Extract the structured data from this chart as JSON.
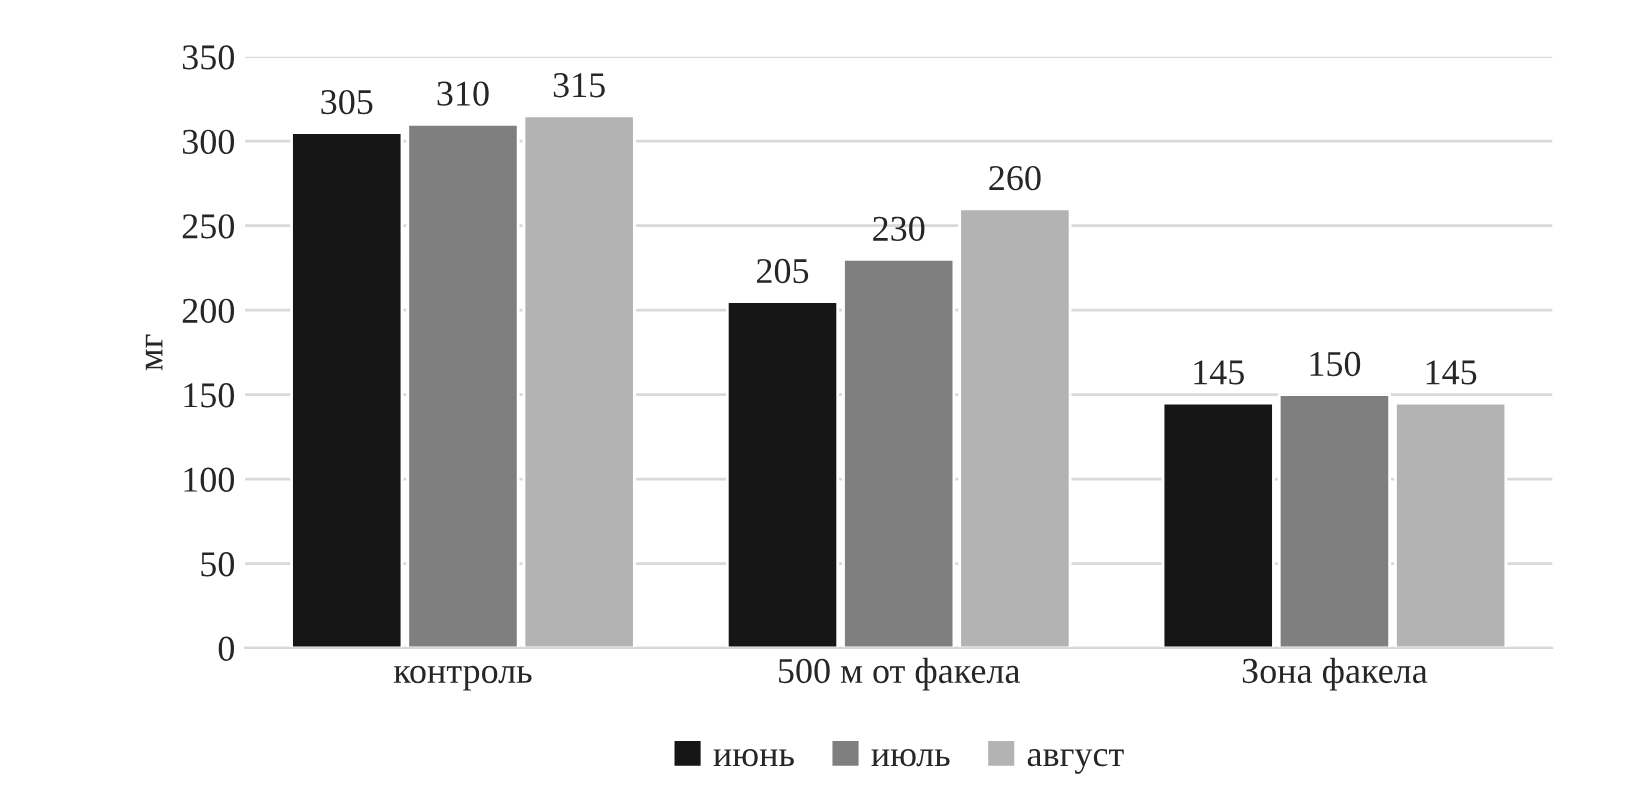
{
  "chart_data": {
    "type": "bar",
    "ylabel": "мг",
    "categories": [
      "контроль",
      "500 м от факела",
      "Зона факела"
    ],
    "series": [
      {
        "name": "июнь",
        "color": "#161616",
        "values": [
          305,
          205,
          145
        ]
      },
      {
        "name": "июль",
        "color": "#7f7f7f",
        "values": [
          310,
          230,
          150
        ]
      },
      {
        "name": "август",
        "color": "#b3b3b3",
        "values": [
          315,
          260,
          145
        ]
      }
    ],
    "ylim": [
      0,
      350
    ],
    "yticks": [
      0,
      50,
      100,
      150,
      200,
      250,
      300,
      350
    ],
    "grid": "y",
    "legend": "bottom",
    "data_labels": true
  }
}
